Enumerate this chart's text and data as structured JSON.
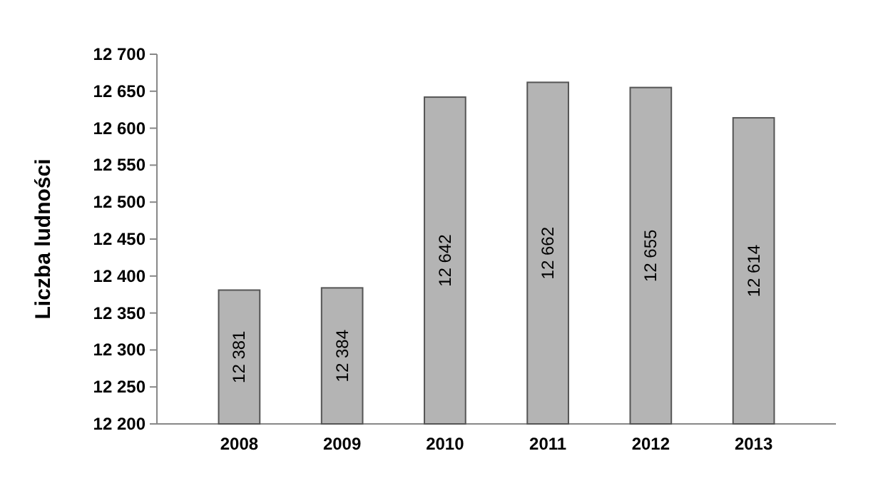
{
  "chart_data": {
    "type": "bar",
    "ylabel": "Liczba ludności",
    "categories": [
      "2008",
      "2009",
      "2010",
      "2011",
      "2012",
      "2013"
    ],
    "values": [
      12381,
      12384,
      12642,
      12662,
      12655,
      12614
    ],
    "value_labels": [
      "12 381",
      "12 384",
      "12 642",
      "12 662",
      "12 655",
      "12 614"
    ],
    "color": "#b4b4b4",
    "ylim": [
      12200,
      12700
    ],
    "yticks": [
      {
        "value": 12200,
        "label": "12 200"
      },
      {
        "value": 12250,
        "label": "12 250"
      },
      {
        "value": 12300,
        "label": "12 300"
      },
      {
        "value": 12350,
        "label": "12 350"
      },
      {
        "value": 12400,
        "label": "12 400"
      },
      {
        "value": 12450,
        "label": "12 450"
      },
      {
        "value": 12500,
        "label": "12 500"
      },
      {
        "value": 12550,
        "label": "12 550"
      },
      {
        "value": 12600,
        "label": "12 600"
      },
      {
        "value": 12650,
        "label": "12 650"
      },
      {
        "value": 12700,
        "label": "12 700"
      }
    ],
    "grid": false
  }
}
